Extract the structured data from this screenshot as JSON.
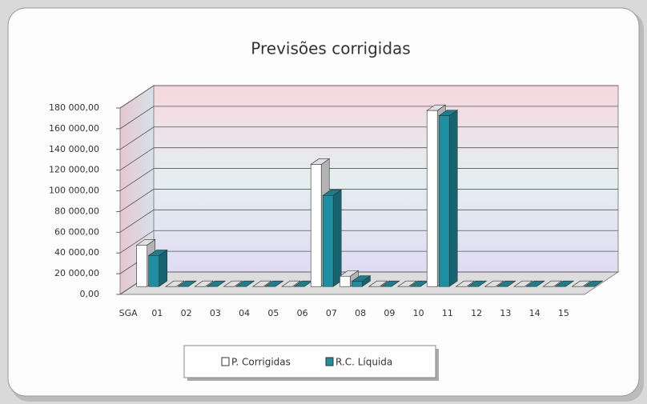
{
  "chart_data": {
    "type": "bar3d",
    "title": "Previsões corrigidas",
    "categories": [
      "SGA",
      "01",
      "02",
      "03",
      "04",
      "05",
      "06",
      "07",
      "08",
      "09",
      "10",
      "11",
      "12",
      "13",
      "14",
      "15"
    ],
    "series": [
      {
        "name": "P. Corrigidas",
        "color": "#ffffff",
        "values": [
          40000,
          0,
          0,
          0,
          0,
          0,
          118000,
          10000,
          0,
          0,
          170000,
          0,
          0,
          0,
          0,
          0
        ]
      },
      {
        "name": "R.C. Líquida",
        "color": "#1e8fa0",
        "values": [
          30000,
          0,
          0,
          0,
          0,
          0,
          88000,
          5000,
          0,
          0,
          165000,
          0,
          0,
          0,
          0,
          0
        ]
      }
    ],
    "ylim": [
      0,
      180000
    ],
    "yticks": [
      {
        "value": 0,
        "label": "0,00"
      },
      {
        "value": 20000,
        "label": "20 000,00"
      },
      {
        "value": 40000,
        "label": "40 000,00"
      },
      {
        "value": 60000,
        "label": "60 000,00"
      },
      {
        "value": 80000,
        "label": "80 000,00"
      },
      {
        "value": 100000,
        "label": "100 000,00"
      },
      {
        "value": 120000,
        "label": "120 000,00"
      },
      {
        "value": 140000,
        "label": "140 000,00"
      },
      {
        "value": 160000,
        "label": "160 000,00"
      },
      {
        "value": 180000,
        "label": "180 000,00"
      }
    ],
    "grid": true
  }
}
